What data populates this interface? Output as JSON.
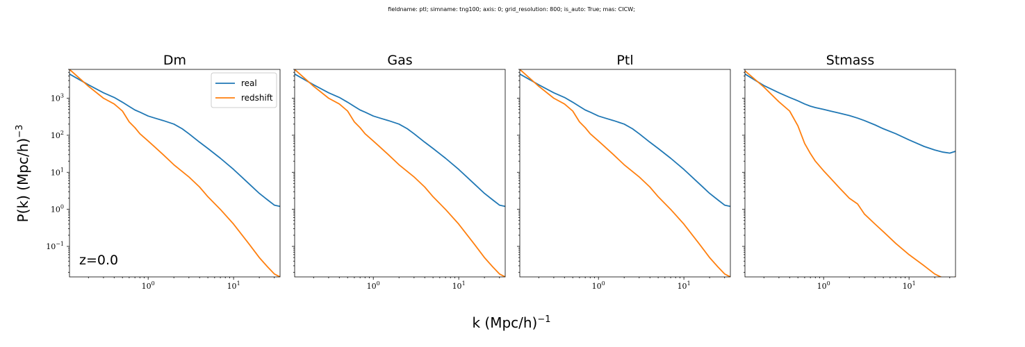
{
  "suptitle": "fieldname: ptl; simname: tng100; axis: 0; grid_resolution: 800; is_auto: True; mas: CICW;",
  "xlabel_base": "k (Mpc/h)",
  "xlabel_exp": "−1",
  "ylabel_base": "P(k) (Mpc/h)",
  "ylabel_exp": "−3",
  "annotation": "z=0.0",
  "colors": {
    "real": "#1f77b4",
    "redshift": "#ff7f0e"
  },
  "chart_data": [
    {
      "type": "line",
      "title": "Dm",
      "xscale": "log",
      "yscale": "log",
      "xlim": [
        0.12,
        35
      ],
      "ylim": [
        0.015,
        6000
      ],
      "xticks": [
        {
          "base": "10",
          "exp": "0",
          "value": 1
        },
        {
          "base": "10",
          "exp": "1",
          "value": 10
        }
      ],
      "yticks": [
        {
          "base": "10",
          "exp": "3",
          "value": 1000
        },
        {
          "base": "10",
          "exp": "2",
          "value": 100
        },
        {
          "base": "10",
          "exp": "1",
          "value": 10
        },
        {
          "base": "10",
          "exp": "0",
          "value": 1
        },
        {
          "base": "10",
          "exp": "−1",
          "value": 0.1
        }
      ],
      "legend": {
        "entries": [
          "real",
          "redshift"
        ],
        "placement": "upper right"
      },
      "series": [
        {
          "name": "real",
          "x": [
            0.12,
            0.2,
            0.3,
            0.4,
            0.5,
            0.6,
            0.7,
            0.8,
            1.0,
            1.2,
            1.5,
            2.0,
            2.5,
            3.0,
            4.0,
            5.0,
            7.0,
            10,
            15,
            20,
            25,
            30,
            35
          ],
          "y": [
            4500,
            2300,
            1400,
            1050,
            780,
            600,
            480,
            420,
            330,
            290,
            250,
            200,
            150,
            110,
            65,
            44,
            24,
            12,
            5,
            2.7,
            1.8,
            1.3,
            1.2
          ]
        },
        {
          "name": "redshift",
          "x": [
            0.12,
            0.2,
            0.3,
            0.4,
            0.5,
            0.6,
            0.7,
            0.8,
            1.0,
            1.2,
            1.5,
            2.0,
            2.5,
            3.0,
            4.0,
            5.0,
            7.0,
            10,
            15,
            20,
            25,
            30,
            35
          ],
          "y": [
            6000,
            2100,
            1000,
            700,
            450,
            230,
            160,
            110,
            70,
            48,
            30,
            16,
            10.5,
            7.5,
            4,
            2.2,
            1,
            0.4,
            0.12,
            0.05,
            0.028,
            0.018,
            0.015
          ]
        }
      ]
    },
    {
      "type": "line",
      "title": "Gas",
      "xscale": "log",
      "yscale": "log",
      "xlim": [
        0.12,
        35
      ],
      "ylim": [
        0.015,
        6000
      ],
      "xticks": [
        {
          "base": "10",
          "exp": "0",
          "value": 1
        },
        {
          "base": "10",
          "exp": "1",
          "value": 10
        }
      ],
      "yticks": [],
      "legend": null,
      "series": [
        {
          "name": "real",
          "x": [
            0.12,
            0.2,
            0.3,
            0.4,
            0.5,
            0.6,
            0.7,
            0.8,
            1.0,
            1.2,
            1.5,
            2.0,
            2.5,
            3.0,
            4.0,
            5.0,
            7.0,
            10,
            15,
            20,
            25,
            30,
            35
          ],
          "y": [
            4500,
            2300,
            1400,
            1050,
            780,
            600,
            480,
            420,
            330,
            290,
            250,
            200,
            150,
            110,
            65,
            44,
            24,
            12,
            5,
            2.7,
            1.8,
            1.3,
            1.2
          ]
        },
        {
          "name": "redshift",
          "x": [
            0.12,
            0.2,
            0.3,
            0.4,
            0.5,
            0.6,
            0.7,
            0.8,
            1.0,
            1.2,
            1.5,
            2.0,
            2.5,
            3.0,
            4.0,
            5.0,
            7.0,
            10,
            15,
            20,
            25,
            30,
            35
          ],
          "y": [
            6000,
            2100,
            1000,
            700,
            450,
            230,
            160,
            110,
            70,
            48,
            30,
            16,
            10.5,
            7.5,
            4,
            2.2,
            1,
            0.4,
            0.12,
            0.05,
            0.028,
            0.018,
            0.015
          ]
        }
      ]
    },
    {
      "type": "line",
      "title": "Ptl",
      "xscale": "log",
      "yscale": "log",
      "xlim": [
        0.12,
        35
      ],
      "ylim": [
        0.015,
        6000
      ],
      "xticks": [
        {
          "base": "10",
          "exp": "0",
          "value": 1
        },
        {
          "base": "10",
          "exp": "1",
          "value": 10
        }
      ],
      "yticks": [],
      "legend": null,
      "series": [
        {
          "name": "real",
          "x": [
            0.12,
            0.2,
            0.3,
            0.4,
            0.5,
            0.6,
            0.7,
            0.8,
            1.0,
            1.2,
            1.5,
            2.0,
            2.5,
            3.0,
            4.0,
            5.0,
            7.0,
            10,
            15,
            20,
            25,
            30,
            35
          ],
          "y": [
            4500,
            2300,
            1400,
            1050,
            780,
            600,
            480,
            420,
            330,
            290,
            250,
            200,
            150,
            110,
            65,
            44,
            24,
            12,
            5,
            2.7,
            1.8,
            1.3,
            1.2
          ]
        },
        {
          "name": "redshift",
          "x": [
            0.12,
            0.2,
            0.3,
            0.4,
            0.5,
            0.6,
            0.7,
            0.8,
            1.0,
            1.2,
            1.5,
            2.0,
            2.5,
            3.0,
            4.0,
            5.0,
            7.0,
            10,
            15,
            20,
            25,
            30,
            35
          ],
          "y": [
            6000,
            2100,
            1000,
            700,
            450,
            230,
            160,
            110,
            70,
            48,
            30,
            16,
            10.5,
            7.5,
            4,
            2.2,
            1,
            0.4,
            0.12,
            0.05,
            0.028,
            0.018,
            0.015
          ]
        }
      ]
    },
    {
      "type": "line",
      "title": "Stmass",
      "xscale": "log",
      "yscale": "log",
      "xlim": [
        0.12,
        35
      ],
      "ylim": [
        0.015,
        6000
      ],
      "xticks": [
        {
          "base": "10",
          "exp": "0",
          "value": 1
        },
        {
          "base": "10",
          "exp": "1",
          "value": 10
        }
      ],
      "yticks": [],
      "legend": null,
      "series": [
        {
          "name": "real",
          "x": [
            0.12,
            0.2,
            0.3,
            0.4,
            0.5,
            0.6,
            0.7,
            0.8,
            1.0,
            1.2,
            1.5,
            2.0,
            2.5,
            3.0,
            4.0,
            5.0,
            7.0,
            10,
            15,
            20,
            25,
            30,
            35
          ],
          "y": [
            4500,
            2200,
            1400,
            1050,
            850,
            700,
            610,
            560,
            500,
            450,
            400,
            340,
            290,
            250,
            190,
            150,
            110,
            75,
            50,
            40,
            35,
            33,
            37
          ]
        },
        {
          "name": "redshift",
          "x": [
            0.12,
            0.2,
            0.3,
            0.4,
            0.5,
            0.6,
            0.7,
            0.8,
            1.0,
            1.2,
            1.5,
            2.0,
            2.5,
            3.0,
            4.0,
            5.0,
            7.0,
            10,
            15,
            20,
            25,
            30,
            35
          ],
          "y": [
            5500,
            2000,
            800,
            450,
            180,
            60,
            32,
            20,
            11,
            7,
            4,
            2,
            1.4,
            0.75,
            0.4,
            0.25,
            0.12,
            0.06,
            0.03,
            0.018,
            0.014,
            0.013,
            0.015
          ]
        }
      ]
    }
  ]
}
